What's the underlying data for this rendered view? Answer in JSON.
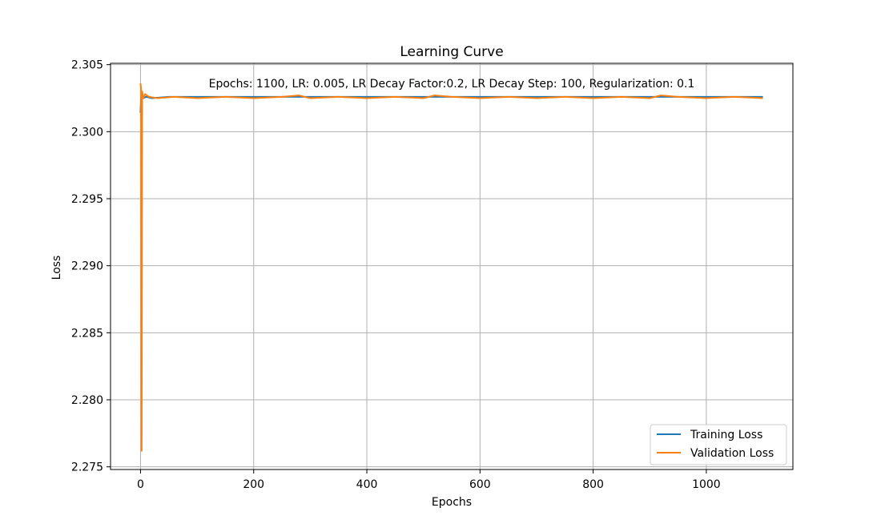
{
  "chart_data": {
    "type": "line",
    "title": "Learning Curve",
    "annotation": "Epochs: 1100, LR: 0.005, LR Decay Factor:0.2, LR Decay Step: 100, Regularization: 0.1",
    "xlabel": "Epochs",
    "ylabel": "Loss",
    "xlim": [
      -53,
      1153
    ],
    "ylim": [
      2.2748,
      2.3051
    ],
    "xticks": [
      0,
      200,
      400,
      600,
      800,
      1000
    ],
    "xtick_labels": [
      "0",
      "200",
      "400",
      "600",
      "800",
      "1000"
    ],
    "yticks": [
      2.275,
      2.28,
      2.285,
      2.29,
      2.295,
      2.3,
      2.305
    ],
    "ytick_labels": [
      "2.275",
      "2.280",
      "2.285",
      "2.290",
      "2.295",
      "2.300",
      "2.305"
    ],
    "grid": true,
    "legend_position": "lower right",
    "series": [
      {
        "name": "Training Loss",
        "color": "#1f77b4",
        "x": [
          0,
          1,
          2,
          3,
          4,
          5,
          10,
          20,
          50,
          100,
          200,
          300,
          400,
          500,
          600,
          700,
          800,
          900,
          1000,
          1100
        ],
        "values": [
          2.3014,
          2.3026,
          2.3025,
          2.3026,
          2.3026,
          2.3025,
          2.3026,
          2.3025,
          2.3026,
          2.3026,
          2.3026,
          2.3026,
          2.3026,
          2.3026,
          2.3026,
          2.3026,
          2.3026,
          2.3026,
          2.3026,
          2.3026
        ]
      },
      {
        "name": "Validation Loss",
        "color": "#ff7f0e",
        "x": [
          0,
          1,
          2,
          3,
          4,
          5,
          8,
          15,
          30,
          60,
          100,
          150,
          200,
          250,
          280,
          300,
          350,
          400,
          450,
          500,
          520,
          550,
          600,
          650,
          700,
          750,
          800,
          850,
          900,
          920,
          950,
          1000,
          1050,
          1100
        ],
        "values": [
          2.3036,
          2.3032,
          2.2762,
          2.303,
          2.3027,
          2.3025,
          2.3028,
          2.3026,
          2.3025,
          2.3026,
          2.3025,
          2.3026,
          2.3025,
          2.3026,
          2.3027,
          2.3025,
          2.3026,
          2.3025,
          2.3026,
          2.3025,
          2.3027,
          2.3026,
          2.3025,
          2.3026,
          2.3025,
          2.3026,
          2.3025,
          2.3026,
          2.3025,
          2.3027,
          2.3026,
          2.3025,
          2.3026,
          2.3025
        ]
      }
    ]
  }
}
